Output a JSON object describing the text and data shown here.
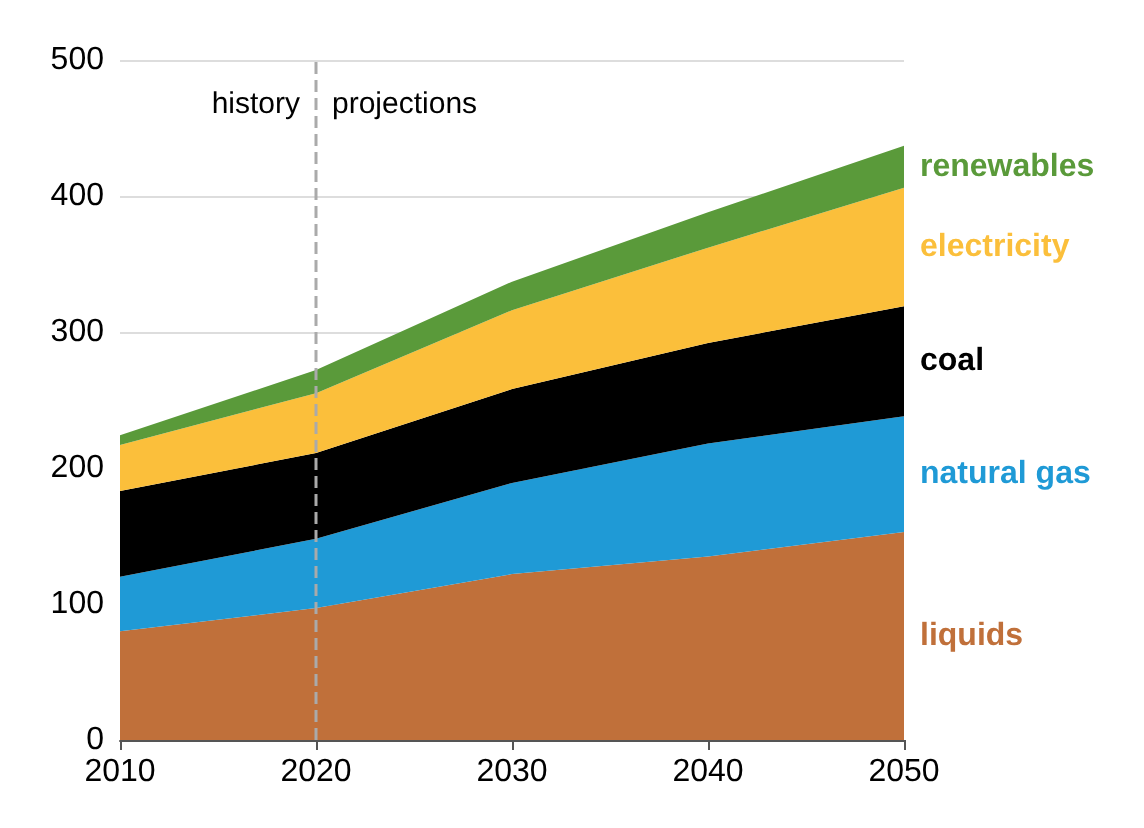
{
  "chart_data": {
    "type": "area",
    "stacked": true,
    "x": [
      2010,
      2020,
      2030,
      2040,
      2050
    ],
    "series": [
      {
        "name": "liquids",
        "color": "#c0703a",
        "values": [
          80,
          97,
          122,
          135,
          153
        ]
      },
      {
        "name": "natural gas",
        "color": "#1f9ad6",
        "values": [
          40,
          51,
          67,
          83,
          85
        ]
      },
      {
        "name": "coal",
        "color": "#000000",
        "values": [
          63,
          63,
          69,
          74,
          81
        ]
      },
      {
        "name": "electricity",
        "color": "#fbbf3b",
        "values": [
          34,
          44,
          58,
          70,
          87
        ]
      },
      {
        "name": "renewables",
        "color": "#5a9a3a",
        "values": [
          7,
          17,
          21,
          26,
          31
        ]
      }
    ],
    "xlim": [
      2010,
      2050
    ],
    "xticks": [
      2010,
      2020,
      2030,
      2040,
      2050
    ],
    "ylim": [
      0,
      500
    ],
    "yticks": [
      0,
      100,
      200,
      300,
      400,
      500
    ],
    "grid": "y",
    "legend": false,
    "ref_lines": [
      {
        "axis": "x",
        "value": 2020,
        "color": "#aaaaaa",
        "line_style": "dashed"
      }
    ],
    "annotations": [
      "history",
      "projections"
    ]
  }
}
